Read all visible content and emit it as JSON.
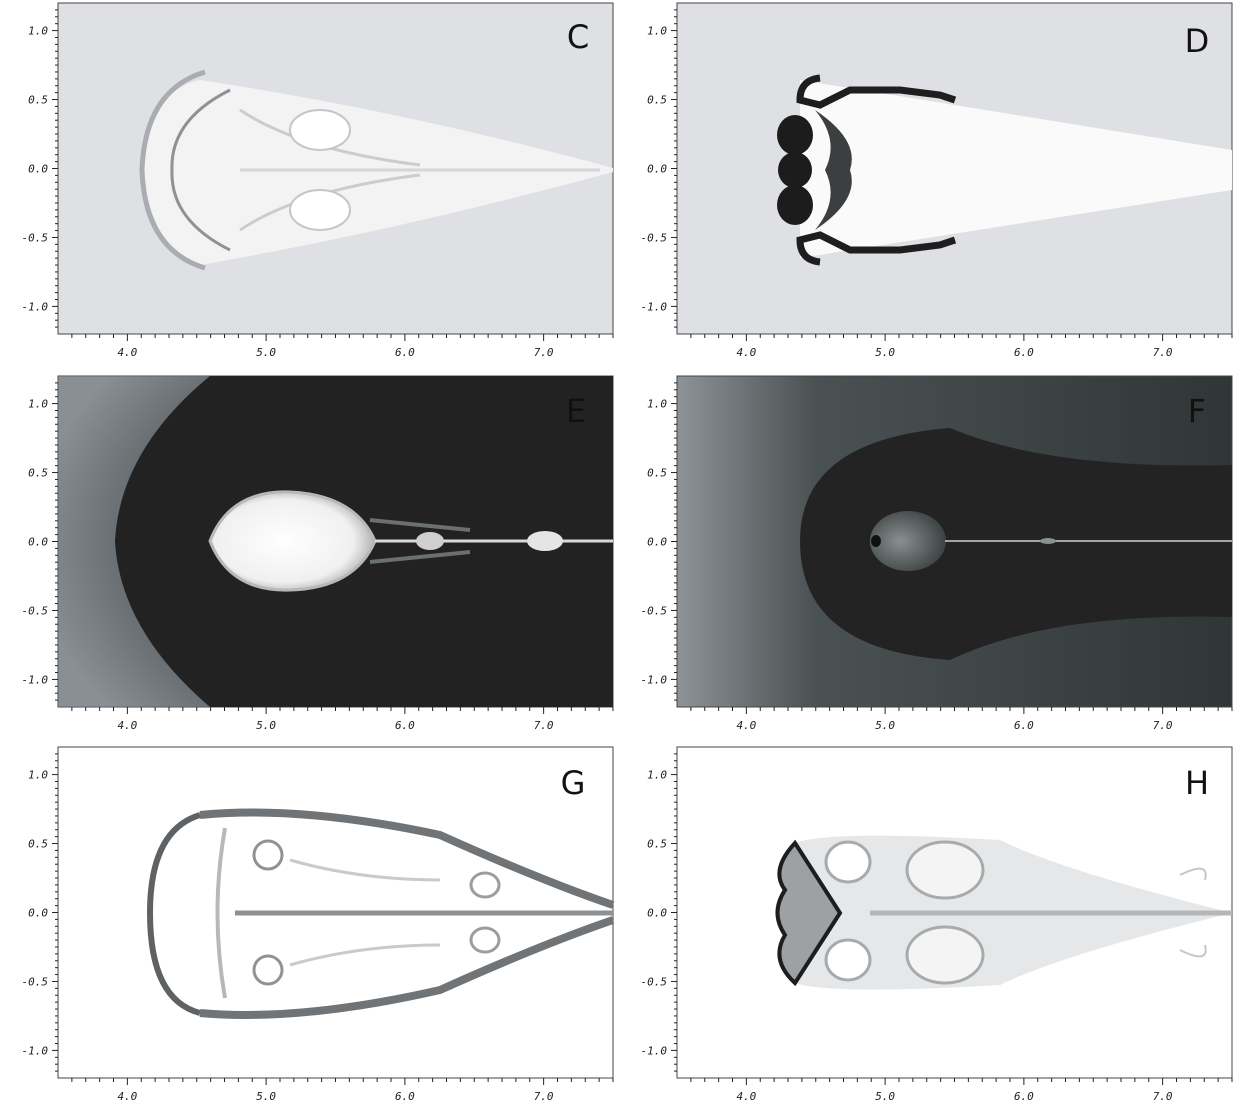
{
  "figure": {
    "x_ticks": [
      "4.0",
      "5.0",
      "6.0",
      "7.0"
    ],
    "y_ticks": [
      "1.0",
      "0.5",
      "0.0",
      "-0.5",
      "-1.0"
    ],
    "x_tick_values": [
      4.0,
      5.0,
      6.0,
      7.0
    ],
    "y_tick_values": [
      1.0,
      0.5,
      0.0,
      -0.5,
      -1.0
    ],
    "x_range": [
      3.5,
      7.5
    ],
    "y_range": [
      -1.2,
      1.2
    ],
    "panels": [
      {
        "id": "C",
        "label": "C",
        "style": "light-flow"
      },
      {
        "id": "D",
        "label": "D",
        "style": "light-dark-front"
      },
      {
        "id": "E",
        "label": "E",
        "style": "dark-bubble"
      },
      {
        "id": "F",
        "label": "F",
        "style": "dark-small-bubble"
      },
      {
        "id": "G",
        "label": "G",
        "style": "white-shell"
      },
      {
        "id": "H",
        "label": "H",
        "style": "white-vortices"
      }
    ]
  }
}
